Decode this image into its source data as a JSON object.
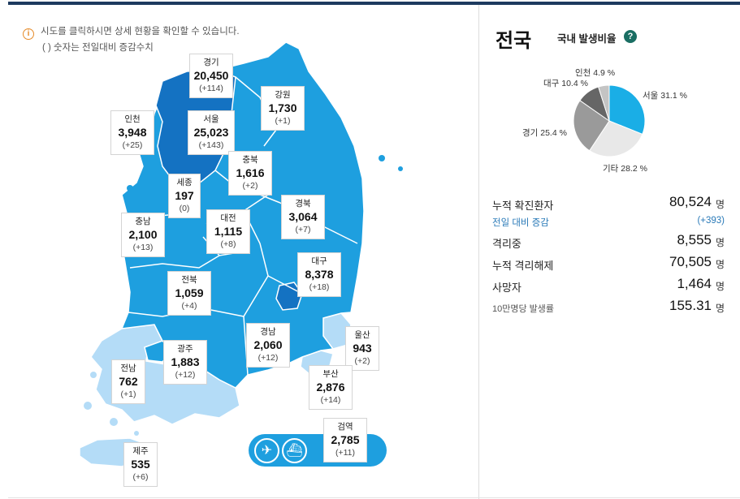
{
  "notice": {
    "line1": "시도를 클릭하시면 상세 현황을 확인할 수 있습니다.",
    "line2": "( ) 숫자는 전일대비 증감수치"
  },
  "regions": {
    "gyeonggi": {
      "name": "경기",
      "count": "20,450",
      "delta": "(+114)"
    },
    "gangwon": {
      "name": "강원",
      "count": "1,730",
      "delta": "(+1)"
    },
    "incheon": {
      "name": "인천",
      "count": "3,948",
      "delta": "(+25)"
    },
    "seoul": {
      "name": "서울",
      "count": "25,023",
      "delta": "(+143)"
    },
    "chungbuk": {
      "name": "충북",
      "count": "1,616",
      "delta": "(+2)"
    },
    "sejong": {
      "name": "세종",
      "count": "197",
      "delta": "(0)"
    },
    "gyeongbuk": {
      "name": "경북",
      "count": "3,064",
      "delta": "(+7)"
    },
    "chungnam": {
      "name": "충남",
      "count": "2,100",
      "delta": "(+13)"
    },
    "daejeon": {
      "name": "대전",
      "count": "1,115",
      "delta": "(+8)"
    },
    "daegu": {
      "name": "대구",
      "count": "8,378",
      "delta": "(+18)"
    },
    "jeonbuk": {
      "name": "전북",
      "count": "1,059",
      "delta": "(+4)"
    },
    "ulsan": {
      "name": "울산",
      "count": "943",
      "delta": "(+2)"
    },
    "gwangju": {
      "name": "광주",
      "count": "1,883",
      "delta": "(+12)"
    },
    "gyeongnam": {
      "name": "경남",
      "count": "2,060",
      "delta": "(+12)"
    },
    "jeonnam": {
      "name": "전남",
      "count": "762",
      "delta": "(+1)"
    },
    "busan": {
      "name": "부산",
      "count": "2,876",
      "delta": "(+14)"
    },
    "jeju": {
      "name": "제주",
      "count": "535",
      "delta": "(+6)"
    },
    "quarantine": {
      "name": "검역",
      "count": "2,785",
      "delta": "(+11)"
    }
  },
  "panel": {
    "title": "전국",
    "subtitle": "국내 발생비율",
    "help": "?"
  },
  "pie": {
    "colors": {
      "seoul": "#1aaee6",
      "other": "#e8e8e8",
      "gyeonggi": "#9a9a9a",
      "daegu": "#666666",
      "incheon": "#c4c4c4"
    },
    "labels": {
      "incheon": "인천 4.9 %",
      "daegu": "대구 10.4 %",
      "seoul": "서울 31.1 %",
      "gyeonggi": "경기 25.4 %",
      "other": "기타 28.2 %"
    }
  },
  "chart_data": {
    "type": "pie",
    "title": "국내 발생비율",
    "categories": [
      "서울",
      "기타",
      "경기",
      "대구",
      "인천"
    ],
    "values": [
      31.1,
      28.2,
      25.4,
      10.4,
      4.9
    ]
  },
  "stats": {
    "total": {
      "label": "누적 확진환자",
      "value": "80,524",
      "unit": "명"
    },
    "daily": {
      "label": "전일 대비 증감",
      "value": "(+393)"
    },
    "isolated": {
      "label": "격리중",
      "value": "8,555",
      "unit": "명"
    },
    "released": {
      "label": "누적 격리해제",
      "value": "70,505",
      "unit": "명"
    },
    "deaths": {
      "label": "사망자",
      "value": "1,464",
      "unit": "명"
    },
    "rate": {
      "label": "10만명당 발생률",
      "value": "155.31",
      "unit": "명"
    }
  }
}
